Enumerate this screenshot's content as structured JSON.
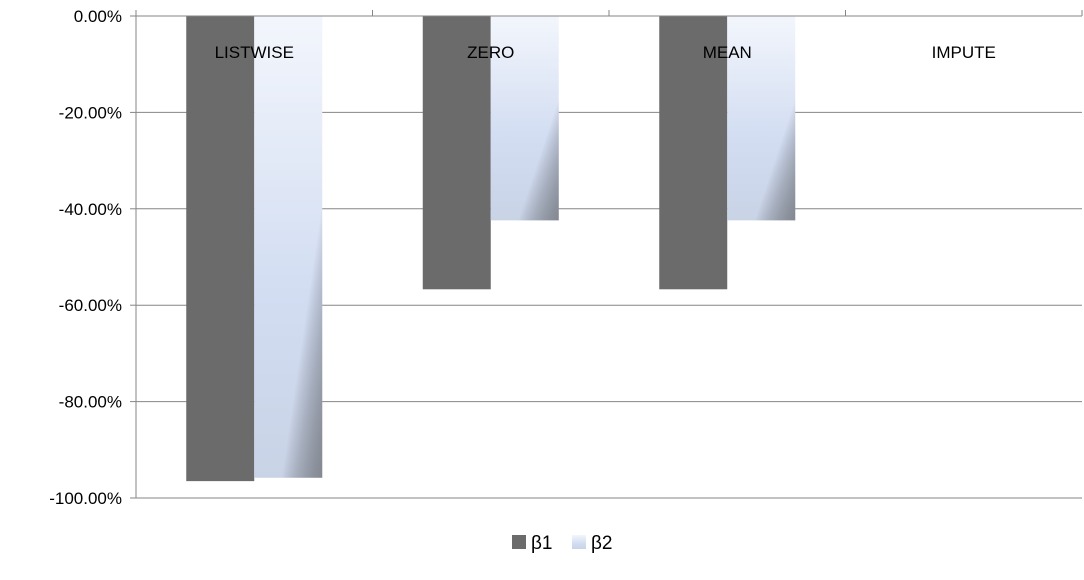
{
  "chart_data": {
    "type": "bar",
    "categories": [
      "LISTWISE",
      "ZERO",
      "MEAN",
      "IMPUTE"
    ],
    "series": [
      {
        "name": "β1",
        "values": [
          -96.5,
          -56.7,
          -56.7,
          0
        ],
        "color": "#6b6b6b"
      },
      {
        "name": "β2",
        "values": [
          -95.8,
          -42.4,
          -42.4,
          0
        ],
        "color": "#d4def2"
      }
    ],
    "y_ticks": [
      "0.00%",
      "-20.00%",
      "-40.00%",
      "-60.00%",
      "-80.00%",
      "-100.00%"
    ],
    "ylim": [
      -100,
      0
    ],
    "y_unit": "%",
    "category_labels_position": "top",
    "grid": true,
    "legend": "bottom"
  }
}
